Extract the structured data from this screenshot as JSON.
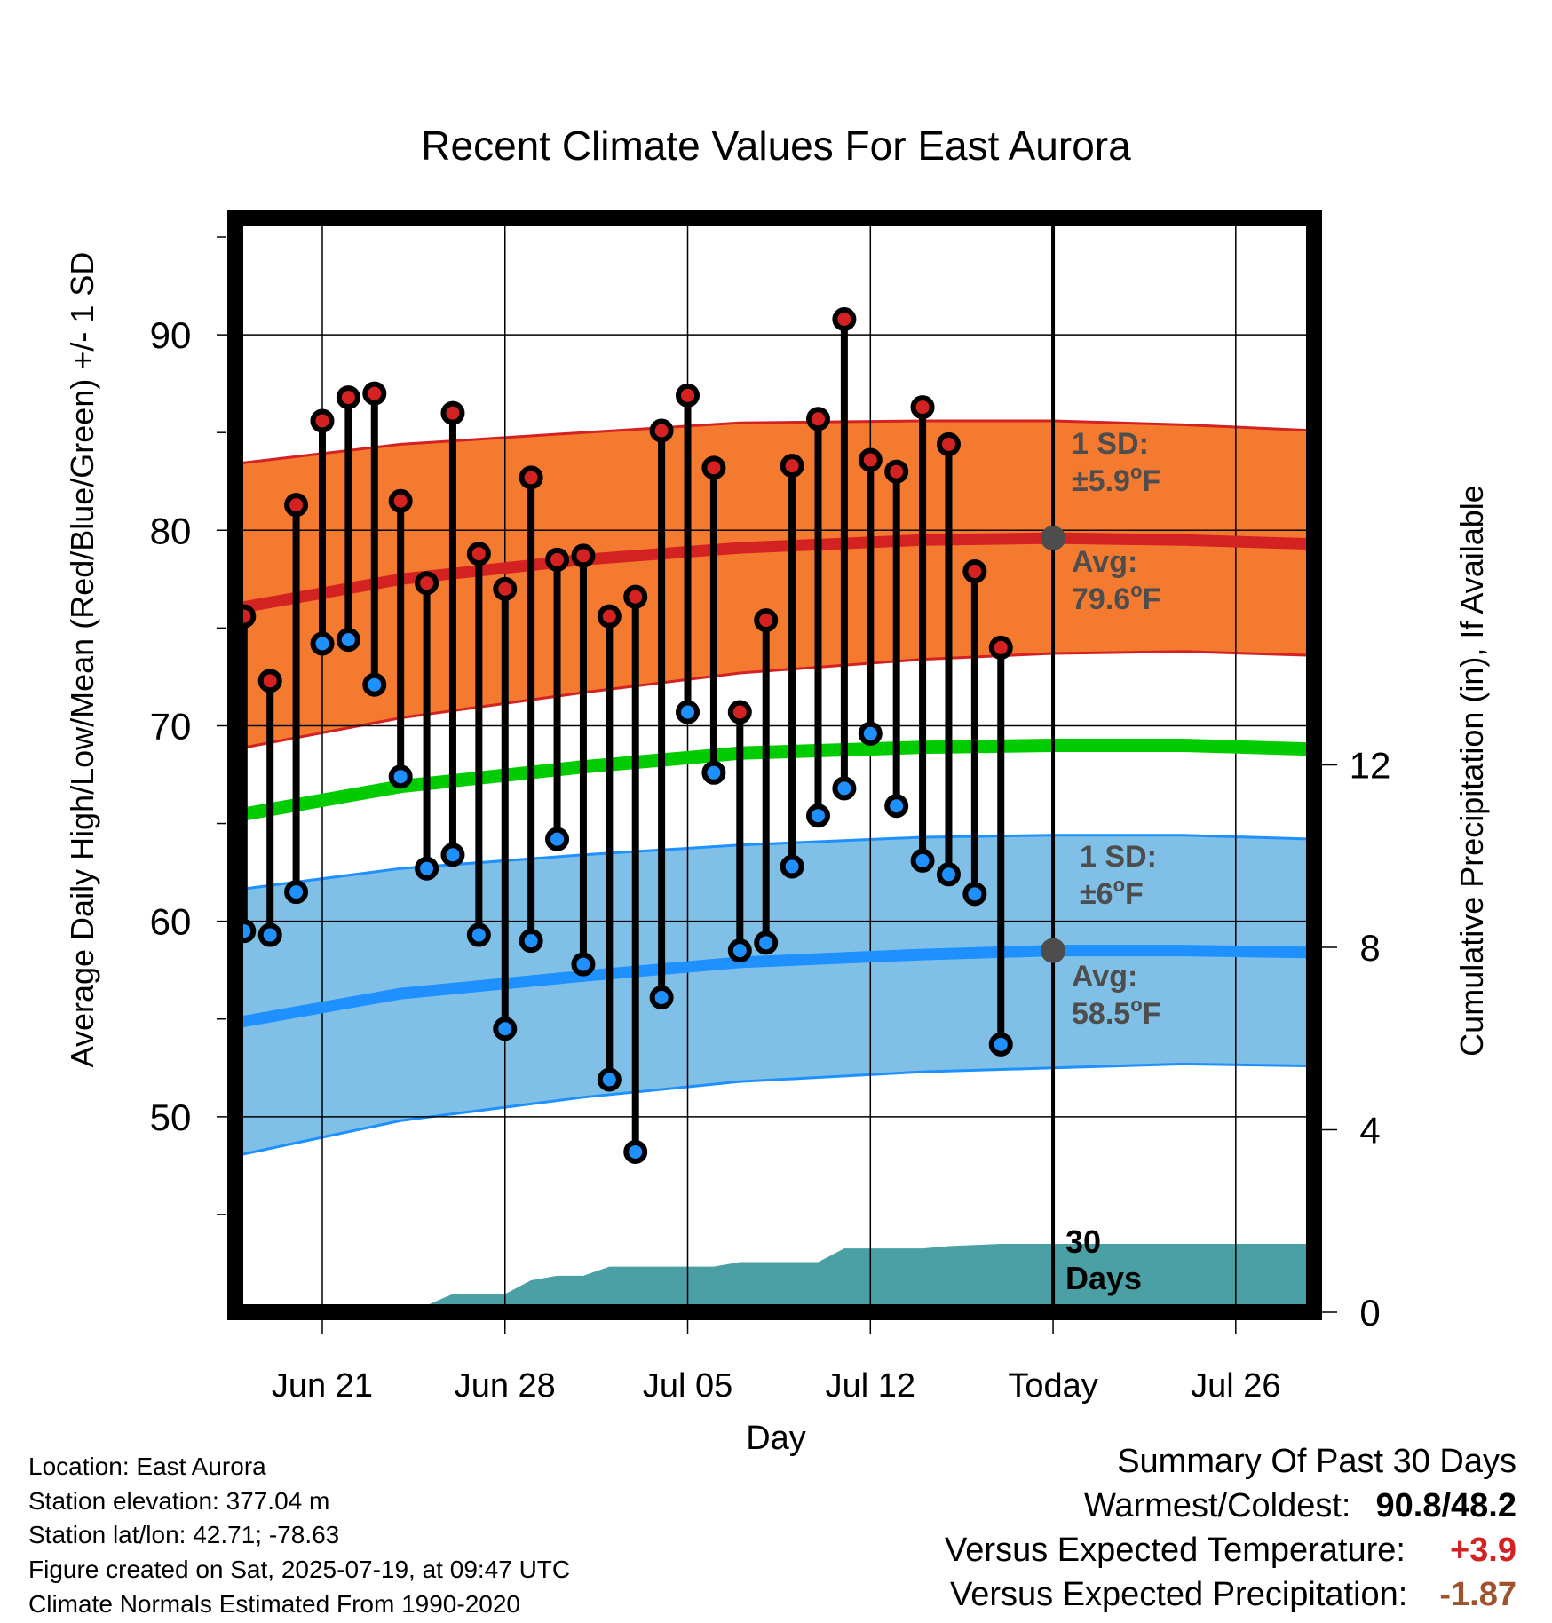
{
  "chart_data": {
    "type": "line",
    "title": "Recent Climate Values For East Aurora",
    "xlabel": "Day",
    "ylabel": "Average Daily High/Low/Mean (Red/Blue/Green) +/- 1 SD",
    "y2label": "Cumulative Precipitation (in), If Available",
    "ylim": [
      40,
      96
    ],
    "y2lim": [
      0,
      24
    ],
    "x_tick_labels": [
      "Jun 21",
      "Jun 28",
      "Jul 05",
      "Jul 12",
      "Today",
      "Jul 26"
    ],
    "x_tick_dates": [
      "2025-06-21",
      "2025-06-28",
      "2025-07-05",
      "2025-07-12",
      "2025-07-19",
      "2025-07-26"
    ],
    "x_range": [
      "2025-06-17T16:00",
      "2025-07-29"
    ],
    "y_ticks": [
      50,
      60,
      70,
      80,
      90
    ],
    "y2_ticks": [
      0,
      4,
      8,
      12
    ],
    "grid": true,
    "today": "2025-07-19",
    "daily": [
      {
        "date": "2025-06-18",
        "high": 75.6,
        "low": 59.5
      },
      {
        "date": "2025-06-19",
        "high": 72.3,
        "low": 59.3
      },
      {
        "date": "2025-06-20",
        "high": 81.3,
        "low": 61.5
      },
      {
        "date": "2025-06-21",
        "high": 85.6,
        "low": 74.2
      },
      {
        "date": "2025-06-22",
        "high": 86.8,
        "low": 74.4
      },
      {
        "date": "2025-06-23",
        "high": 87.0,
        "low": 72.1
      },
      {
        "date": "2025-06-24",
        "high": 81.5,
        "low": 67.4
      },
      {
        "date": "2025-06-25",
        "high": 77.3,
        "low": 62.7
      },
      {
        "date": "2025-06-26",
        "high": 86.0,
        "low": 63.4
      },
      {
        "date": "2025-06-27",
        "high": 78.8,
        "low": 59.3
      },
      {
        "date": "2025-06-28",
        "high": 77.0,
        "low": 54.5
      },
      {
        "date": "2025-06-29",
        "high": 82.7,
        "low": 59.0
      },
      {
        "date": "2025-06-30",
        "high": 78.5,
        "low": 64.2
      },
      {
        "date": "2025-07-01",
        "high": 78.7,
        "low": 57.8
      },
      {
        "date": "2025-07-02",
        "high": 75.6,
        "low": 51.9
      },
      {
        "date": "2025-07-03",
        "high": 76.6,
        "low": 48.2
      },
      {
        "date": "2025-07-04",
        "high": 85.1,
        "low": 56.1
      },
      {
        "date": "2025-07-05",
        "high": 86.9,
        "low": 70.7
      },
      {
        "date": "2025-07-06",
        "high": 83.2,
        "low": 67.6
      },
      {
        "date": "2025-07-07",
        "high": 70.7,
        "low": 58.5
      },
      {
        "date": "2025-07-08",
        "high": 75.4,
        "low": 58.9
      },
      {
        "date": "2025-07-09",
        "high": 83.3,
        "low": 62.8
      },
      {
        "date": "2025-07-10",
        "high": 85.7,
        "low": 65.4
      },
      {
        "date": "2025-07-11",
        "high": 90.8,
        "low": 66.8
      },
      {
        "date": "2025-07-12",
        "high": 83.6,
        "low": 69.6
      },
      {
        "date": "2025-07-13",
        "high": 83.0,
        "low": 65.9
      },
      {
        "date": "2025-07-14",
        "high": 86.3,
        "low": 63.1
      },
      {
        "date": "2025-07-15",
        "high": 84.4,
        "low": 62.4
      },
      {
        "date": "2025-07-16",
        "high": 77.9,
        "low": 61.4
      },
      {
        "date": "2025-07-17",
        "high": 74.0,
        "low": 53.7
      }
    ],
    "normal_high": {
      "dates": [
        "2025-06-17T16:00",
        "2025-06-24",
        "2025-07-01",
        "2025-07-07",
        "2025-07-14",
        "2025-07-19",
        "2025-07-24",
        "2025-07-29"
      ],
      "values": [
        76.0,
        77.5,
        78.5,
        79.1,
        79.5,
        79.6,
        79.5,
        79.3
      ]
    },
    "high_sd_upper": [
      83.4,
      84.4,
      85.0,
      85.5,
      85.6,
      85.6,
      85.4,
      85.1
    ],
    "high_sd_lower": [
      68.8,
      70.4,
      71.7,
      72.7,
      73.4,
      73.7,
      73.8,
      73.6
    ],
    "normal_mean": [
      65.4,
      66.9,
      67.9,
      68.6,
      68.9,
      69.0,
      69.0,
      68.8
    ],
    "normal_low": [
      54.8,
      56.3,
      57.2,
      57.9,
      58.3,
      58.5,
      58.5,
      58.4
    ],
    "low_sd_upper": [
      61.6,
      62.7,
      63.4,
      63.9,
      64.3,
      64.4,
      64.4,
      64.2
    ],
    "low_sd_lower": [
      48.0,
      49.8,
      51.0,
      51.8,
      52.3,
      52.5,
      52.7,
      52.6
    ],
    "precipitation": {
      "dates": [
        "2025-06-18",
        "2025-06-20",
        "2025-06-21",
        "2025-06-25",
        "2025-06-26",
        "2025-06-28",
        "2025-06-29",
        "2025-06-30",
        "2025-07-01",
        "2025-07-02",
        "2025-07-06",
        "2025-07-07",
        "2025-07-10",
        "2025-07-11",
        "2025-07-14",
        "2025-07-15",
        "2025-07-17",
        "2025-07-29"
      ],
      "values": [
        0.05,
        0.1,
        0.15,
        0.15,
        0.4,
        0.4,
        0.7,
        0.8,
        0.8,
        1.0,
        1.0,
        1.1,
        1.1,
        1.4,
        1.4,
        1.45,
        1.5,
        1.5
      ]
    },
    "series": [
      {
        "name": "High",
        "color": "#d42222"
      },
      {
        "name": "Low",
        "color": "#1e90ff"
      },
      {
        "name": "Mean",
        "color": "#00cc00"
      }
    ],
    "colors": {
      "high_band": "#f47a30",
      "high_band_edge": "#d42222",
      "low_band": "#80c0e6",
      "low_band_edge": "#1e90ff",
      "precip": "#4aa0a4",
      "annotation": "#4d4d4d"
    },
    "annotations": {
      "high_sd_label": "1 SD:",
      "high_sd_value": "±5.9",
      "high_avg_label": "Avg:",
      "high_avg_value": "79.6",
      "low_sd_label": "1 SD:",
      "low_sd_value": "±6",
      "low_avg_label": "Avg:",
      "low_avg_value": "58.5",
      "unit_sup": "o",
      "unit": "F",
      "precip_days": "30",
      "precip_days_label": "Days"
    }
  },
  "footer": {
    "location": "Location: East Aurora",
    "elevation": "Station elevation: 377.04 m",
    "latlon": "Station lat/lon: 42.71; -78.63",
    "created": "Figure created on Sat, 2025-07-19, at 09:47 UTC",
    "normals": "Climate Normals Estimated From 1990-2020"
  },
  "summary": {
    "title": "Summary Of Past 30 Days",
    "warm_cold_label": "Warmest/Coldest:",
    "warm_value": "90.8",
    "slash": "/",
    "cold_value": "48.2",
    "temp_label": "Versus Expected Temperature:",
    "temp_value": "+3.9",
    "temp_color": "#d42222",
    "precip_label": "Versus Expected Precipitation:",
    "precip_value": "-1.87",
    "precip_color": "#a0522d"
  }
}
